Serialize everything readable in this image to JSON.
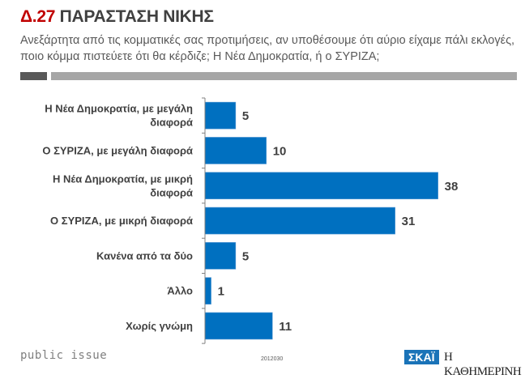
{
  "header": {
    "number": "Δ.27",
    "title": "ΠΑΡΑΣΤΑΣΗ ΝΙΚΗΣ",
    "question": "Ανεξάρτητα από τις κομματικές σας προτιμήσεις, αν υποθέσουμε ότι αύριο είχαμε πάλι εκλογές, ποιο κόμμα πιστεύετε ότι θα κέρδιζε; Η Νέα Δημοκρατία, ή ο ΣΥΡΙΖΑ;"
  },
  "chart_data": {
    "type": "bar",
    "orientation": "horizontal",
    "title": "Δ.27 ΠΑΡΑΣΤΑΣΗ ΝΙΚΗΣ",
    "categories": [
      [
        "Η Νέα Δημοκρατία, με μεγάλη",
        "διαφορά"
      ],
      [
        "Ο ΣΥΡΙΖΑ, με μεγάλη διαφορά"
      ],
      [
        "Η Νέα Δημοκρατία, με μικρή",
        "διαφορά"
      ],
      [
        "Ο ΣΥΡΙΖΑ, με μικρή διαφορά"
      ],
      [
        "Κανένα από τα δύο"
      ],
      [
        "Άλλο"
      ],
      [
        "Χωρίς γνώμη"
      ]
    ],
    "values": [
      5,
      10,
      38,
      31,
      5,
      1,
      11
    ],
    "xlim": [
      0,
      40
    ],
    "xlabel": "",
    "ylabel": "",
    "grid": false,
    "legend": "none",
    "bar_color": "#0070c0"
  },
  "footer": {
    "brand": "public issue",
    "code": "2012030",
    "logo_skai": "ΣΚΑΪ",
    "logo_kathimerini": "Η ΚΑΘΗΜΕΡΙΝΗ"
  }
}
